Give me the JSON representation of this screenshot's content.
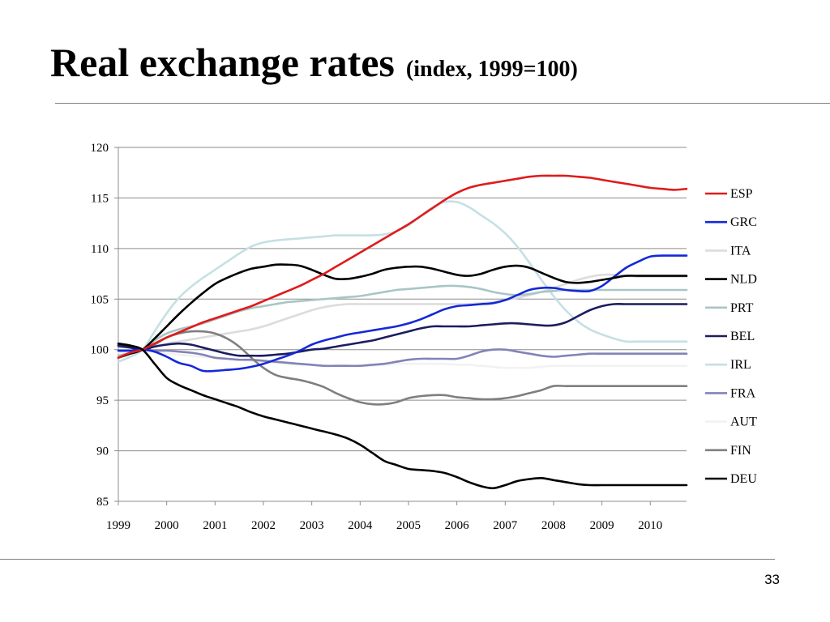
{
  "slide": {
    "title": "Real exchange rates",
    "subtitle": "(index, 1999=100)",
    "page_number": "33"
  },
  "chart_data": {
    "type": "line",
    "title": "Real exchange rates",
    "subtitle": "(index, 1999=100)",
    "xlabel": "",
    "ylabel": "",
    "xlim": [
      1999,
      2010.75
    ],
    "ylim": [
      85,
      120
    ],
    "xticks": [
      1999,
      2000,
      2001,
      2002,
      2003,
      2004,
      2005,
      2006,
      2007,
      2008,
      2009,
      2010
    ],
    "xtick_labels": [
      "1999",
      "2000",
      "2001",
      "2002",
      "2003",
      "2004",
      "2005",
      "2006",
      "2007",
      "2008",
      "2009",
      "2010"
    ],
    "yticks": [
      85,
      90,
      95,
      100,
      105,
      110,
      115,
      120
    ],
    "ytick_labels": [
      "85",
      "90",
      "95",
      "100",
      "105",
      "110",
      "115",
      "120"
    ],
    "grid": "horizontal",
    "legend_position": "right",
    "x": [
      1999,
      1999.25,
      1999.5,
      1999.75,
      2000,
      2000.25,
      2000.5,
      2000.75,
      2001,
      2001.25,
      2001.5,
      2001.75,
      2002,
      2002.25,
      2002.5,
      2002.75,
      2003,
      2003.25,
      2003.5,
      2003.75,
      2004,
      2004.25,
      2004.5,
      2004.75,
      2005,
      2005.25,
      2005.5,
      2005.75,
      2006,
      2006.25,
      2006.5,
      2006.75,
      2007,
      2007.25,
      2007.5,
      2007.75,
      2008,
      2008.25,
      2008.5,
      2008.75,
      2009,
      2009.25,
      2009.5,
      2009.75,
      2010,
      2010.25,
      2010.5,
      2010.75
    ],
    "series": [
      {
        "name": "ESP",
        "color": "#e01b1b",
        "width": 2.6,
        "values": [
          99.2,
          99.7,
          100,
          100.6,
          101.2,
          101.7,
          102.2,
          102.7,
          103.1,
          103.5,
          103.9,
          104.3,
          104.8,
          105.3,
          105.8,
          106.3,
          106.9,
          107.5,
          108.2,
          108.9,
          109.6,
          110.3,
          111,
          111.7,
          112.4,
          113.2,
          114,
          114.8,
          115.5,
          116,
          116.3,
          116.5,
          116.7,
          116.9,
          117.1,
          117.2,
          117.2,
          117.2,
          117.1,
          117,
          116.8,
          116.6,
          116.4,
          116.2,
          116,
          115.9,
          115.8,
          115.9
        ]
      },
      {
        "name": "GRC",
        "color": "#1428d8",
        "width": 2.6,
        "values": [
          99.9,
          99.9,
          100,
          99.8,
          99.3,
          98.7,
          98.4,
          97.9,
          97.9,
          98,
          98.1,
          98.3,
          98.6,
          99,
          99.4,
          99.9,
          100.5,
          100.9,
          101.2,
          101.5,
          101.7,
          101.9,
          102.1,
          102.3,
          102.6,
          103,
          103.5,
          104,
          104.3,
          104.4,
          104.5,
          104.6,
          104.9,
          105.4,
          105.9,
          106.1,
          106.1,
          105.9,
          105.8,
          105.8,
          106.3,
          107.2,
          108.1,
          108.7,
          109.2,
          109.3,
          109.3,
          109.3
        ]
      },
      {
        "name": "ITA",
        "color": "#dcdcdc",
        "width": 2.6,
        "values": [
          100.5,
          100.3,
          100,
          100.3,
          100.6,
          100.8,
          101,
          101.2,
          101.4,
          101.6,
          101.8,
          102,
          102.3,
          102.7,
          103.1,
          103.5,
          103.9,
          104.2,
          104.4,
          104.5,
          104.5,
          104.5,
          104.5,
          104.5,
          104.5,
          104.5,
          104.5,
          104.5,
          104.5,
          104.5,
          104.6,
          104.7,
          104.9,
          105.1,
          105.4,
          105.7,
          106.1,
          106.5,
          106.9,
          107.2,
          107.4,
          107.4,
          107.3,
          107.2,
          107.2,
          107.2,
          107.2,
          107.2
        ]
      },
      {
        "name": "NLD",
        "color": "#000000",
        "width": 2.6,
        "values": [
          99.2,
          99.6,
          100,
          101.1,
          102.3,
          103.5,
          104.6,
          105.6,
          106.5,
          107.1,
          107.6,
          108,
          108.2,
          108.4,
          108.4,
          108.3,
          107.9,
          107.4,
          107,
          107,
          107.2,
          107.5,
          107.9,
          108.1,
          108.2,
          108.2,
          108,
          107.7,
          107.4,
          107.3,
          107.5,
          107.9,
          108.2,
          108.3,
          108.1,
          107.6,
          107.1,
          106.7,
          106.6,
          106.7,
          106.9,
          107.1,
          107.3,
          107.3,
          107.3,
          107.3,
          107.3,
          107.3
        ]
      },
      {
        "name": "PRT",
        "color": "#a9c5c5",
        "width": 2.6,
        "values": [
          99.4,
          99.7,
          100,
          100.9,
          101.6,
          102,
          102.3,
          102.6,
          103,
          103.4,
          103.8,
          104.1,
          104.3,
          104.5,
          104.7,
          104.8,
          104.9,
          105,
          105.1,
          105.2,
          105.3,
          105.5,
          105.7,
          105.9,
          106,
          106.1,
          106.2,
          106.3,
          106.3,
          106.2,
          106,
          105.7,
          105.5,
          105.4,
          105.5,
          105.7,
          105.8,
          105.9,
          105.9,
          105.9,
          105.9,
          105.9,
          105.9,
          105.9,
          105.9,
          105.9,
          105.9,
          105.9
        ]
      },
      {
        "name": "BEL",
        "color": "#1c1c60",
        "width": 2.6,
        "values": [
          100.4,
          100.2,
          100,
          100.3,
          100.5,
          100.6,
          100.5,
          100.2,
          99.9,
          99.6,
          99.4,
          99.4,
          99.4,
          99.5,
          99.6,
          99.8,
          100,
          100.1,
          100.3,
          100.5,
          100.7,
          100.9,
          101.2,
          101.5,
          101.8,
          102.1,
          102.3,
          102.3,
          102.3,
          102.3,
          102.4,
          102.5,
          102.6,
          102.6,
          102.5,
          102.4,
          102.4,
          102.7,
          103.3,
          103.9,
          104.3,
          104.5,
          104.5,
          104.5,
          104.5,
          104.5,
          104.5,
          104.5
        ]
      },
      {
        "name": "IRL",
        "color": "#c5e0e4",
        "width": 2.6,
        "values": [
          98.8,
          99.3,
          100,
          101.8,
          103.6,
          105.1,
          106.2,
          107.1,
          107.9,
          108.7,
          109.5,
          110.2,
          110.6,
          110.8,
          110.9,
          111,
          111.1,
          111.2,
          111.3,
          111.3,
          111.3,
          111.3,
          111.4,
          111.7,
          112.3,
          113.2,
          114.1,
          114.6,
          114.6,
          114.1,
          113.3,
          112.5,
          111.5,
          110.2,
          108.6,
          106.9,
          105.3,
          103.9,
          102.8,
          102,
          101.5,
          101.1,
          100.8,
          100.8,
          100.8,
          100.8,
          100.8,
          100.8
        ]
      },
      {
        "name": "FRA",
        "color": "#8283b8",
        "width": 2.6,
        "values": [
          100.3,
          100.2,
          100,
          99.9,
          99.9,
          99.8,
          99.7,
          99.5,
          99.2,
          99.1,
          99,
          99,
          98.9,
          98.8,
          98.7,
          98.6,
          98.5,
          98.4,
          98.4,
          98.4,
          98.4,
          98.5,
          98.6,
          98.8,
          99,
          99.1,
          99.1,
          99.1,
          99.1,
          99.4,
          99.8,
          100,
          100,
          99.8,
          99.6,
          99.4,
          99.3,
          99.4,
          99.5,
          99.6,
          99.6,
          99.6,
          99.6,
          99.6,
          99.6,
          99.6,
          99.6,
          99.6
        ]
      },
      {
        "name": "AUT",
        "color": "#f2f2f2",
        "width": 2.6,
        "values": [
          99.7,
          99.9,
          100,
          99.8,
          99.6,
          99.5,
          99.4,
          99.3,
          99.2,
          99.1,
          99,
          98.9,
          98.8,
          98.7,
          98.6,
          98.5,
          98.5,
          98.4,
          98.4,
          98.4,
          98.4,
          98.4,
          98.5,
          98.6,
          98.6,
          98.6,
          98.6,
          98.6,
          98.5,
          98.5,
          98.4,
          98.3,
          98.2,
          98.2,
          98.2,
          98.3,
          98.4,
          98.4,
          98.4,
          98.4,
          98.4,
          98.4,
          98.4,
          98.4,
          98.4,
          98.4,
          98.4,
          98.4
        ]
      },
      {
        "name": "FIN",
        "color": "#7f7f7f",
        "width": 2.6,
        "values": [
          100.5,
          100.2,
          100,
          100.5,
          101.2,
          101.6,
          101.8,
          101.8,
          101.6,
          101.1,
          100.3,
          99.2,
          98.2,
          97.5,
          97.2,
          97,
          96.7,
          96.3,
          95.7,
          95.2,
          94.8,
          94.6,
          94.6,
          94.8,
          95.2,
          95.4,
          95.5,
          95.5,
          95.3,
          95.2,
          95.1,
          95.1,
          95.2,
          95.4,
          95.7,
          96,
          96.4,
          96.4,
          96.4,
          96.4,
          96.4,
          96.4,
          96.4,
          96.4,
          96.4,
          96.4,
          96.4,
          96.4
        ]
      },
      {
        "name": "DEU",
        "color": "#000000",
        "width": 2.6,
        "values": [
          100.6,
          100.4,
          100,
          98.6,
          97.2,
          96.5,
          96,
          95.5,
          95.1,
          94.7,
          94.3,
          93.8,
          93.4,
          93.1,
          92.8,
          92.5,
          92.2,
          91.9,
          91.6,
          91.2,
          90.6,
          89.8,
          89.0,
          88.6,
          88.2,
          88.1,
          88,
          87.8,
          87.4,
          86.9,
          86.5,
          86.3,
          86.6,
          87,
          87.2,
          87.3,
          87.1,
          86.9,
          86.7,
          86.6,
          86.6,
          86.6,
          86.6,
          86.6,
          86.6,
          86.6,
          86.6,
          86.6
        ]
      }
    ]
  }
}
